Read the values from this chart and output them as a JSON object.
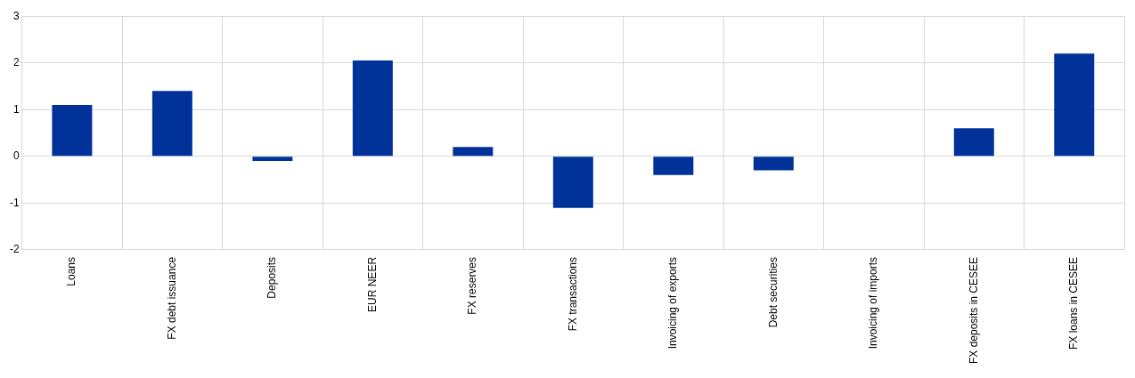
{
  "chart_data": {
    "type": "bar",
    "categories": [
      "Loans",
      "FX debt issuance",
      "Deposits",
      "EUR NEER",
      "FX reserves",
      "FX transactions",
      "Invoicing of exports",
      "Debt securities",
      "Invoicing of imports",
      "FX deposits in CESEE",
      "FX loans in CESEE"
    ],
    "values": [
      1.1,
      1.4,
      -0.1,
      2.05,
      0.2,
      -1.1,
      -0.4,
      -0.3,
      0,
      0.6,
      2.2
    ],
    "color": "#003299",
    "ylim": [
      -2,
      3
    ],
    "yticks": [
      -2,
      -1,
      0,
      1,
      2,
      3
    ],
    "grid": true,
    "legend": false
  }
}
